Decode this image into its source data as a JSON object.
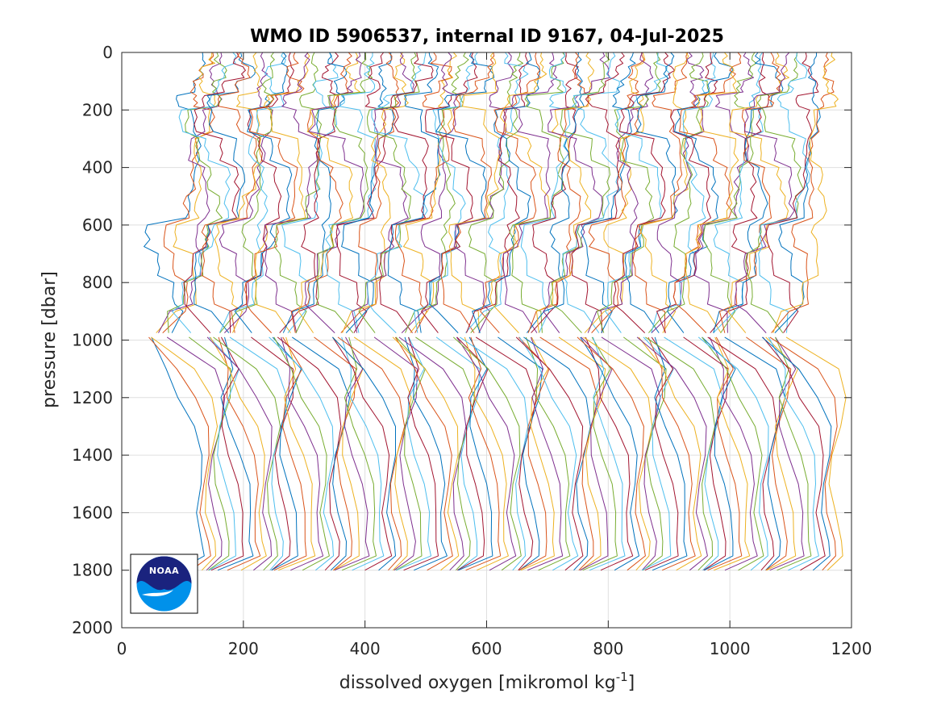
{
  "chart_data": {
    "type": "line",
    "title": "WMO ID 5906537, internal ID 9167, 04-Jul-2025",
    "xlabel": "dissolved oxygen [mikromol kg",
    "xlabel_superscript": "-1",
    "xlabel_suffix": "]",
    "ylabel": "pressure [dbar]",
    "xlim": [
      0,
      1200
    ],
    "ylim": [
      0,
      2000
    ],
    "y_reversed": true,
    "x_ticks": [
      0,
      200,
      400,
      600,
      800,
      1000,
      1200
    ],
    "y_ticks": [
      0,
      200,
      400,
      600,
      800,
      1000,
      1200,
      1400,
      1600,
      1800,
      2000
    ],
    "x_tick_labels": [
      "0",
      "200",
      "400",
      "600",
      "800",
      "1000",
      "1200"
    ],
    "y_tick_labels": [
      "0",
      "200",
      "400",
      "600",
      "800",
      "1000",
      "1200",
      "1400",
      "1600",
      "1800",
      "2000"
    ],
    "grid": true,
    "legend": "none",
    "series_colors": [
      "#0072bd",
      "#d95319",
      "#edb120",
      "#7e2f8e",
      "#77ac30",
      "#4dbeee",
      "#a2142f"
    ],
    "profile_count": 94,
    "profile_offset_step": 10,
    "depth_levels": [
      0,
      50,
      100,
      150,
      200,
      300,
      400,
      500,
      600,
      700,
      800,
      900,
      975,
      990,
      1100,
      1200,
      1300,
      1400,
      1500,
      1600,
      1700,
      1750,
      1800
    ],
    "base_profile": [
      0,
      0,
      -5,
      -40,
      -55,
      -30,
      -15,
      -15,
      -30,
      -35,
      -40,
      -45,
      -45,
      -45,
      -40,
      -35,
      -25,
      -20,
      -15,
      -10,
      0,
      5,
      -20
    ],
    "first_profile_surface": 120,
    "last_profile_surface": 1165
  },
  "logo": {
    "text": "NOAA",
    "top_color": "#1a237e",
    "bottom_color": "#0091ea"
  }
}
